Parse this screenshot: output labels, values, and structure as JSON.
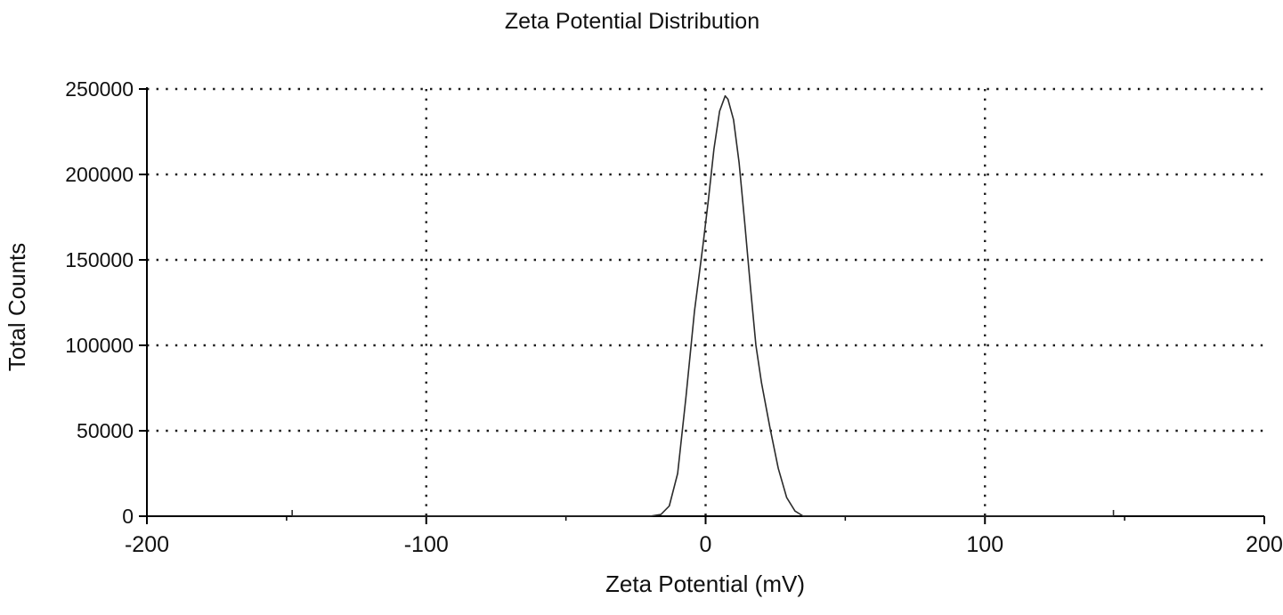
{
  "chart_data": {
    "type": "line",
    "title": "Zeta Potential Distribution",
    "xlabel": "Zeta Potential (mV)",
    "ylabel": "Total Counts",
    "xlim": [
      -200,
      200
    ],
    "ylim": [
      0,
      250000
    ],
    "x_ticks": [
      -200,
      -100,
      0,
      100,
      200
    ],
    "x_minor_ticks": [
      -150,
      -50,
      50,
      150
    ],
    "y_ticks": [
      0,
      50000,
      100000,
      150000,
      200000,
      250000
    ],
    "grid": "dotted",
    "v_gridlines": [
      -100,
      0,
      100
    ],
    "h_gridlines": [
      50000,
      100000,
      150000,
      200000,
      250000
    ],
    "legend": "none",
    "line_color": "#2b2b2b",
    "series": [
      {
        "name": "counts",
        "x": [
          -148,
          -100,
          -50,
          -20,
          -16,
          -13,
          -10,
          -7,
          -4,
          -1,
          1,
          3,
          5,
          7,
          8,
          10,
          12,
          14,
          16,
          18,
          20,
          23,
          26,
          29,
          32,
          35,
          50,
          100,
          146
        ],
        "y": [
          0,
          0,
          0,
          0,
          1000,
          6000,
          25000,
          70000,
          120000,
          158000,
          185000,
          215000,
          237000,
          246000,
          244000,
          232000,
          207000,
          172000,
          135000,
          100000,
          78000,
          52000,
          28000,
          11000,
          3000,
          0,
          0,
          0,
          0
        ]
      }
    ]
  }
}
